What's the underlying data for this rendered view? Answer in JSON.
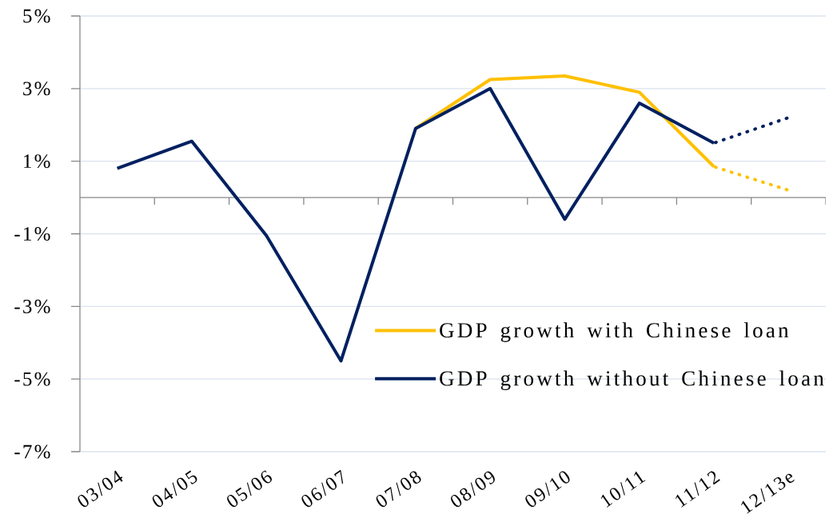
{
  "chart_data": {
    "type": "line",
    "categories": [
      "03/04",
      "04/05",
      "05/06",
      "06/07",
      "07/08",
      "08/09",
      "09/10",
      "10/11",
      "11/12",
      "12/13e"
    ],
    "series": [
      {
        "name": "GDP growth with Chinese loan",
        "color": "#ffc000",
        "values": [
          null,
          null,
          null,
          null,
          1.9,
          3.25,
          3.35,
          2.9,
          0.85,
          null
        ]
      },
      {
        "name": "GDP growth without Chinese loan",
        "color": "#002060",
        "values": [
          0.8,
          1.55,
          -1.05,
          -4.5,
          1.9,
          3.0,
          -0.6,
          2.6,
          1.5,
          null
        ]
      },
      {
        "color": "#ffc000",
        "values": [
          null,
          null,
          null,
          null,
          null,
          null,
          null,
          null,
          0.85,
          0.2
        ],
        "line_style": "dotted"
      },
      {
        "color": "#002060",
        "values": [
          null,
          null,
          null,
          null,
          null,
          null,
          null,
          null,
          1.5,
          2.2
        ],
        "line_style": "dotted"
      }
    ],
    "ylim": [
      -7,
      5
    ],
    "yticks": [
      {
        "value": -7,
        "label": "-7%"
      },
      {
        "value": -5,
        "label": "-5%"
      },
      {
        "value": -3,
        "label": "-3%"
      },
      {
        "value": -1,
        "label": "-1%"
      },
      {
        "value": 1,
        "label": "1%"
      },
      {
        "value": 3,
        "label": "3%"
      },
      {
        "value": 5,
        "label": "5%"
      }
    ],
    "grid": "y",
    "legend": "bottom right",
    "line_style": "solid"
  }
}
